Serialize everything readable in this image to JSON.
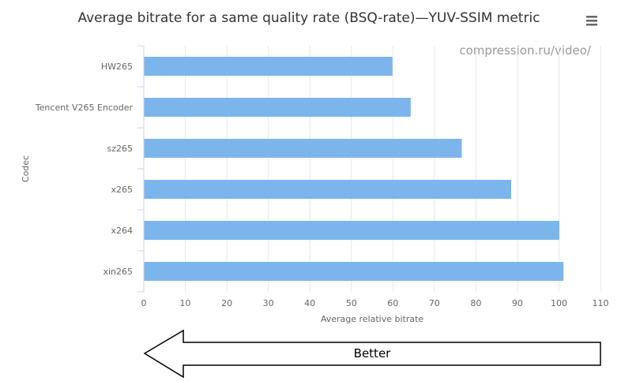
{
  "chart_data": {
    "type": "bar",
    "orientation": "horizontal",
    "title": "Average bitrate for a same quality rate (BSQ-rate)—YUV-SSIM metric",
    "credit": "compression.ru/video/",
    "xlabel": "Average relative bitrate",
    "ylabel": "Codec",
    "categories": [
      "HW265",
      "Tencent V265 Encoder",
      "sz265",
      "x265",
      "x264",
      "xin265"
    ],
    "values": [
      59.8,
      64.2,
      76.5,
      88.4,
      100,
      101
    ],
    "xlim": [
      0,
      110
    ],
    "xticks": [
      0,
      10,
      20,
      30,
      40,
      50,
      60,
      70,
      80,
      90,
      100,
      110
    ],
    "grid": true,
    "bar_color": "#7cb5ec",
    "annotation": "Better",
    "menu_icon": "hamburger-menu-icon"
  }
}
